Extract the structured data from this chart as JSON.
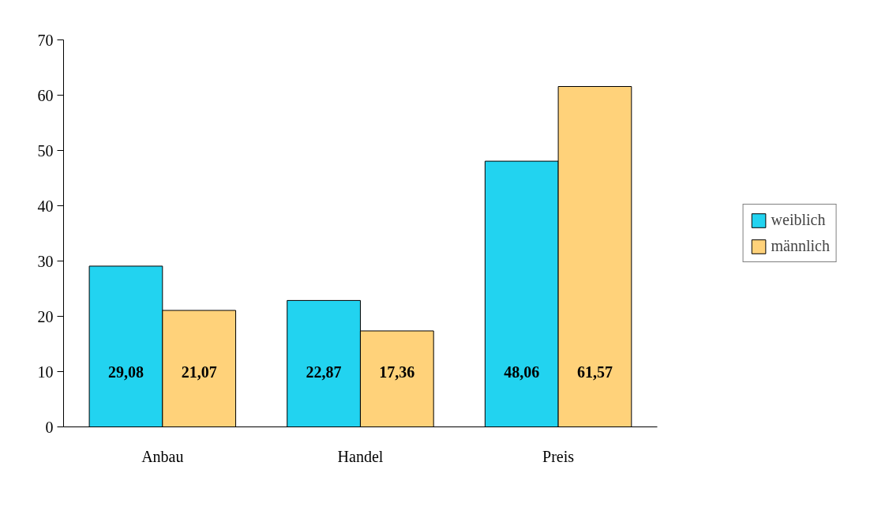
{
  "chart_data": {
    "type": "bar",
    "categories": [
      "Anbau",
      "Handel",
      "Preis"
    ],
    "series": [
      {
        "name": "weiblich",
        "color": "#22d3f0",
        "values": [
          29.08,
          22.87,
          48.06
        ],
        "value_labels": [
          "29,08",
          "22,87",
          "48,06"
        ]
      },
      {
        "name": "männlich",
        "color": "#ffd27a",
        "values": [
          21.07,
          17.36,
          61.57
        ],
        "value_labels": [
          "21,07",
          "17,36",
          "61,57"
        ]
      }
    ],
    "ylim": [
      0,
      70
    ],
    "yticks": [
      0,
      10,
      20,
      30,
      40,
      50,
      60,
      70
    ],
    "grid": false,
    "legend": "right"
  }
}
